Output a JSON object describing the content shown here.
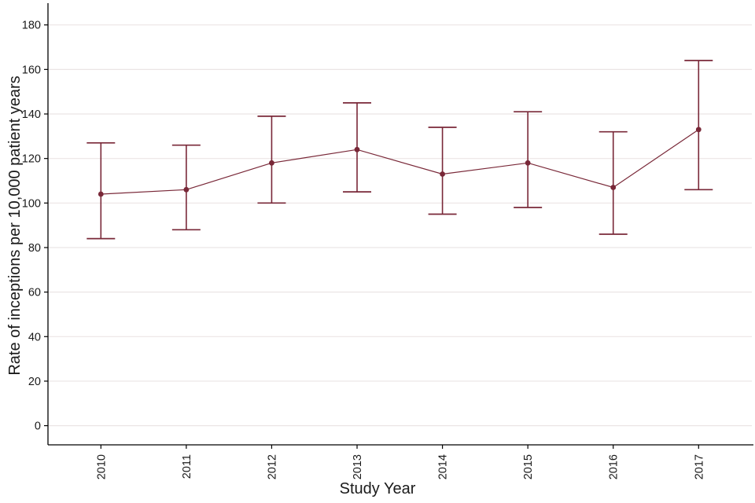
{
  "chart_data": {
    "type": "line",
    "title": "",
    "xlabel": "Study Year",
    "ylabel": "Rate of inceptions per 10,000 patient years",
    "categories": [
      "2010",
      "2011",
      "2012",
      "2013",
      "2014",
      "2015",
      "2016",
      "2017"
    ],
    "series": [
      {
        "name": "Rate of inceptions per 10,000 patient years",
        "values": [
          104,
          106,
          118,
          124,
          113,
          118,
          107,
          133
        ],
        "ci_lower": [
          84,
          88,
          100,
          105,
          95,
          98,
          86,
          106
        ],
        "ci_upper": [
          127,
          126,
          139,
          145,
          134,
          141,
          132,
          164
        ]
      }
    ],
    "ylim": [
      0,
      180
    ],
    "yticks": [
      0,
      20,
      40,
      60,
      80,
      100,
      120,
      140,
      160,
      180
    ],
    "grid": "horizontal-only",
    "legend": "none",
    "marker": "filled-circle",
    "error_bars": true,
    "colors": {
      "series": "#792838",
      "grid": "#ebe5e5",
      "axis": "#000000",
      "text": "#1a1a1a",
      "background": "#ffffff"
    }
  }
}
